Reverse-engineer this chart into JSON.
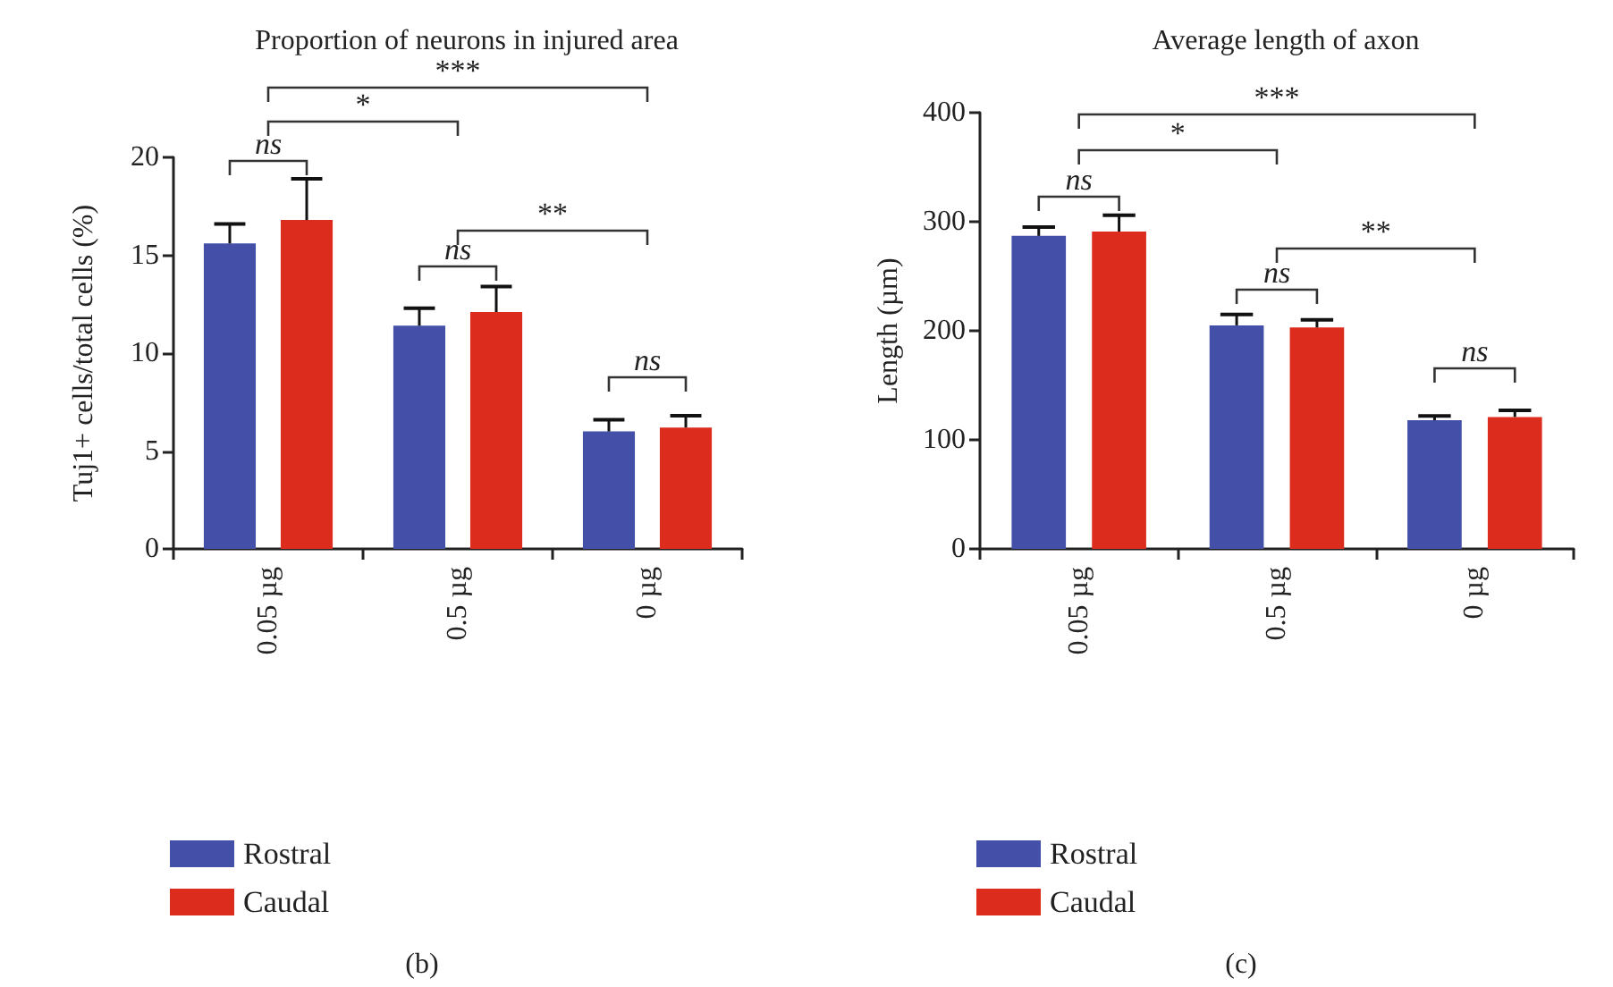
{
  "chart_data": [
    {
      "type": "bar",
      "title": "Proportion of neurons in injured area",
      "ylabel": "Tuj1+ cells/total cells (%)",
      "categories": [
        "0.05 µg",
        "0.5 µg",
        "0 µg"
      ],
      "series": [
        {
          "name": "Rostral",
          "color": "#4450a8",
          "values": [
            15.6,
            11.4,
            6.0
          ],
          "errors": [
            [
              15.6,
              16.6
            ],
            [
              11.4,
              12.3
            ],
            [
              6.0,
              6.6
            ]
          ]
        },
        {
          "name": "Caudal",
          "color": "#dc2c1e",
          "values": [
            16.8,
            12.1,
            6.2
          ],
          "errors": [
            [
              16.8,
              18.9
            ],
            [
              12.1,
              13.4
            ],
            [
              6.2,
              6.8
            ]
          ]
        }
      ],
      "ylim": [
        0,
        20
      ],
      "yticks": [
        0,
        5,
        10,
        15,
        20
      ],
      "grid": false,
      "legend": "bottom left",
      "annotations": [
        "ns",
        "*",
        "***",
        "ns",
        "**",
        "ns",
        "(b)"
      ]
    },
    {
      "type": "bar",
      "title": "Average length of axon",
      "ylabel": "Length (µm)",
      "categories": [
        "0.05 µg",
        "0.5 µg",
        "0 µg"
      ],
      "series": [
        {
          "name": "Rostral",
          "color": "#4450a8",
          "values": [
            287,
            205,
            118
          ],
          "errors": [
            [
              287,
              295
            ],
            [
              205,
              215
            ],
            [
              118,
              122
            ]
          ]
        },
        {
          "name": "Caudal",
          "color": "#dc2c1e",
          "values": [
            291,
            203,
            121
          ],
          "errors": [
            [
              291,
              306
            ],
            [
              203,
              210
            ],
            [
              121,
              127
            ]
          ]
        }
      ],
      "ylim": [
        0,
        400
      ],
      "yticks": [
        0,
        100,
        200,
        300,
        400
      ],
      "grid": false,
      "legend": "bottom left",
      "annotations": [
        "ns",
        "*",
        "***",
        "ns",
        "**",
        "ns",
        "(c)"
      ]
    }
  ]
}
